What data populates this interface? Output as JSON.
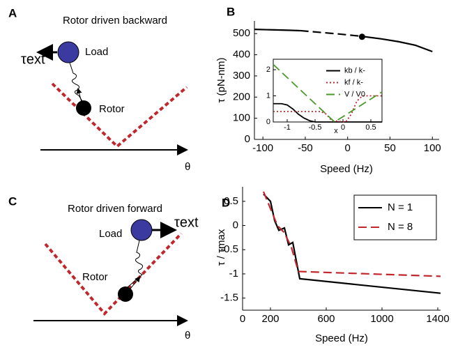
{
  "diagrams": [
    {
      "label": "A",
      "title": "Rotor driven backward",
      "load": "Load",
      "torque": "τext",
      "rotor": "Rotor",
      "axis": "θ"
    },
    {
      "label": "C",
      "title": "Rotor driven forward",
      "load": "Load",
      "torque": "τext",
      "rotor": "Rotor",
      "axis": "θ"
    }
  ],
  "chart_data": [
    {
      "type": "line",
      "label": "B",
      "xlabel": "Speed (Hz)",
      "ylabel": "τ (pN-nm)",
      "xlim": [
        -110,
        108
      ],
      "ylim": [
        0,
        560
      ],
      "xticks": [
        -100,
        -50,
        0,
        50,
        100
      ],
      "yticks": [
        0,
        100,
        200,
        300,
        400,
        500
      ],
      "series": [
        {
          "color": "#000000",
          "style": "solid",
          "x": [
            -110,
            -90,
            -70,
            -56
          ],
          "values": [
            520,
            518,
            516,
            514
          ]
        },
        {
          "color": "#000000",
          "style": "dashed",
          "x": [
            -56,
            -30,
            -10,
            15
          ],
          "values": [
            514,
            505,
            498,
            488
          ]
        },
        {
          "color": "#000000",
          "style": "solid",
          "x": [
            15,
            40,
            60,
            80,
            100
          ],
          "values": [
            488,
            475,
            462,
            445,
            415
          ]
        }
      ],
      "highlight": {
        "x": 17,
        "y": 485
      }
    },
    {
      "type": "line",
      "xlabel": "x",
      "xlim": [
        -1.25,
        0.7
      ],
      "ylim": [
        0,
        2.4
      ],
      "xticks": [
        -1,
        -0.5,
        0,
        0.5
      ],
      "yticks": [
        0,
        1,
        2
      ],
      "legend": "upper right",
      "series": [
        {
          "name": "kb / k-",
          "color": "#000000",
          "style": "solid",
          "x": [
            -1.25,
            -1.1,
            -1.0,
            -0.9,
            -0.8,
            -0.7,
            -0.6,
            -0.5,
            0.7
          ],
          "values": [
            0.7,
            0.7,
            0.65,
            0.5,
            0.3,
            0.15,
            0.05,
            0,
            0
          ]
        },
        {
          "name": "kf / k-",
          "color": "#c0272d",
          "style": "dotted",
          "x": [
            -1.25,
            -0.4,
            -0.3,
            -0.2,
            0.05,
            0.15,
            0.25,
            0.35,
            0.7
          ],
          "values": [
            0.4,
            0.4,
            0.3,
            0.05,
            0,
            0.3,
            0.8,
            1,
            1
          ]
        },
        {
          "name": "V / V0",
          "color": "#4a9a2a",
          "style": "dashed",
          "x": [
            -1.25,
            -0.15,
            0.7
          ],
          "values": [
            2.2,
            0,
            1.15
          ]
        }
      ]
    },
    {
      "type": "line",
      "label": "D",
      "xlabel": "Speed (Hz)",
      "ylabel": "τ / τmax",
      "xlim": [
        0,
        1420
      ],
      "ylim": [
        -1.75,
        0.8
      ],
      "xticks": [
        0,
        200,
        600,
        1000,
        1400
      ],
      "yticks": [
        0.5,
        0,
        -0.5,
        -1,
        -1.5
      ],
      "legend": "upper right",
      "series": [
        {
          "name": "N = 1",
          "color": "#000000",
          "style": "solid",
          "x": [
            150,
            200,
            230,
            260,
            300,
            330,
            360,
            390,
            410,
            1420
          ],
          "values": [
            0.65,
            0.5,
            0.1,
            -0.1,
            -0.05,
            -0.4,
            -0.35,
            -0.8,
            -1.1,
            -1.4
          ]
        },
        {
          "name": "N = 8",
          "color": "#c0272d",
          "style": "dashed",
          "x": [
            150,
            250,
            300,
            350,
            400,
            1420
          ],
          "values": [
            0.7,
            0,
            -0.15,
            -0.45,
            -0.95,
            -1.05
          ]
        }
      ]
    }
  ]
}
